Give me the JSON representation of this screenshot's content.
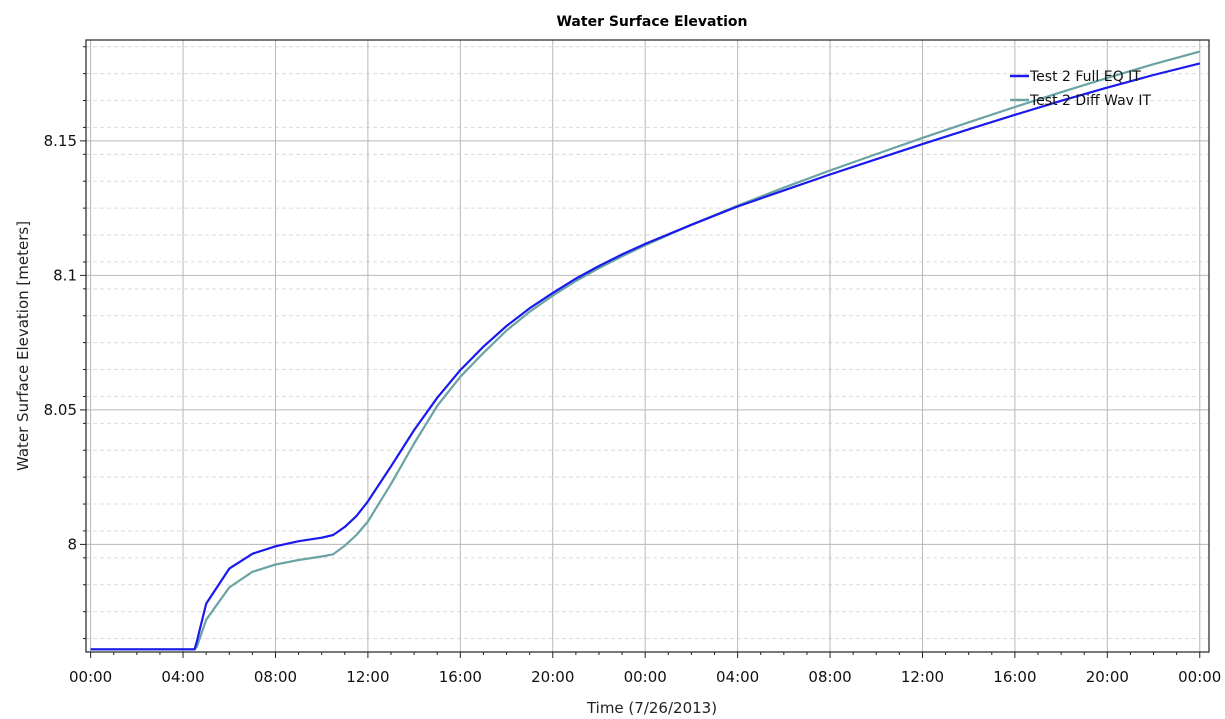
{
  "chart_data": {
    "type": "line",
    "title": "Water Surface Elevation",
    "xlabel": "Time (7/26/2013)",
    "ylabel": "Water Surface Elevation [meters]",
    "x_tick_labels": [
      "00:00",
      "04:00",
      "08:00",
      "12:00",
      "16:00",
      "20:00",
      "00:00",
      "04:00",
      "08:00",
      "12:00",
      "16:00",
      "20:00",
      "00:00"
    ],
    "x_tick_hours": [
      0,
      4,
      8,
      12,
      16,
      20,
      24,
      28,
      32,
      36,
      40,
      44,
      48
    ],
    "xlim": [
      -0.2,
      48.4
    ],
    "y_ticks": [
      8.0,
      8.05,
      8.1,
      8.15
    ],
    "y_tick_labels": [
      "8",
      "8.05",
      "8.1",
      "8.15"
    ],
    "ylim": [
      7.96,
      8.1875
    ],
    "grid": true,
    "legend_position": "top-right",
    "series": [
      {
        "name": "Test 2 Full EQ IT",
        "color": "#1a1aee",
        "x": [
          0,
          4.5,
          4.6,
          5,
          6,
          7,
          8,
          9,
          10,
          10.5,
          11,
          11.5,
          12,
          13,
          14,
          15,
          16,
          17,
          18,
          19,
          20,
          21,
          22,
          23,
          24,
          26,
          28,
          30,
          32,
          34,
          36,
          38,
          40,
          42,
          44,
          46,
          48
        ],
        "y": [
          7.961,
          7.961,
          7.964,
          7.978,
          7.991,
          7.9965,
          7.9993,
          8.0012,
          8.0025,
          8.0035,
          8.0065,
          8.0105,
          8.016,
          8.029,
          8.0425,
          8.0545,
          8.0648,
          8.0735,
          8.0812,
          8.0878,
          8.0935,
          8.0988,
          8.1035,
          8.1078,
          8.1117,
          8.1188,
          8.1256,
          8.1316,
          8.1375,
          8.1432,
          8.1488,
          8.1543,
          8.1597,
          8.1649,
          8.1698,
          8.1745,
          8.1788
        ]
      },
      {
        "name": "Test 2 Diff Wav IT",
        "color": "#6aa3a3",
        "x": [
          0,
          4.5,
          4.6,
          5,
          6,
          7,
          8,
          9,
          10,
          10.5,
          11,
          11.5,
          12,
          13,
          14,
          15,
          16,
          17,
          18,
          19,
          20,
          21,
          22,
          23,
          24,
          26,
          28,
          30,
          32,
          34,
          36,
          38,
          40,
          42,
          44,
          46,
          48
        ],
        "y": [
          7.961,
          7.961,
          7.962,
          7.972,
          7.984,
          7.9898,
          7.9925,
          7.9942,
          7.9955,
          7.9963,
          7.9995,
          8.0035,
          8.0085,
          8.0225,
          8.0375,
          8.0515,
          8.0623,
          8.0712,
          8.0795,
          8.0865,
          8.0925,
          8.0979,
          8.1027,
          8.1071,
          8.1112,
          8.1188,
          8.1259,
          8.1326,
          8.139,
          8.1451,
          8.1511,
          8.1569,
          8.1626,
          8.1681,
          8.1734,
          8.1785,
          8.1832
        ]
      }
    ]
  }
}
